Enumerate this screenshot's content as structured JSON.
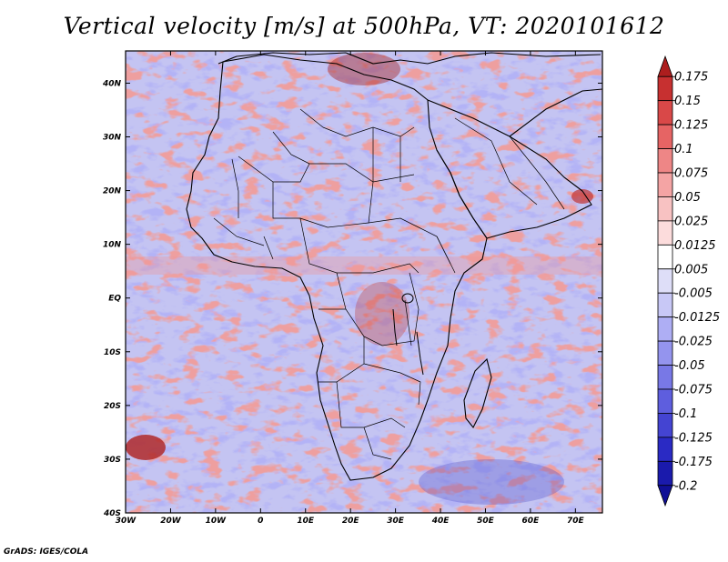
{
  "title": "Vertical velocity [m/s] at 500hPa, VT: 2020101612",
  "credit": "GrADS: IGES/COLA",
  "map": {
    "variable": "Vertical velocity",
    "units": "m/s",
    "level": "500hPa",
    "valid_time": "2020101612",
    "lon_range": [
      -30,
      76
    ],
    "lat_range": [
      -40,
      46
    ],
    "lat_ticks": [
      "40N",
      "30N",
      "20N",
      "10N",
      "EQ",
      "10S",
      "20S",
      "30S",
      "40S"
    ],
    "lon_ticks": [
      "30W",
      "20W",
      "10W",
      "0",
      "10E",
      "20E",
      "30E",
      "40E",
      "50E",
      "60E",
      "70E"
    ]
  },
  "colorbar": {
    "levels": [
      "0.175",
      "0.15",
      "0.125",
      "0.1",
      "0.075",
      "0.05",
      "0.025",
      "0.0125",
      "0.005",
      "-0.005",
      "-0.0125",
      "-0.025",
      "-0.05",
      "-0.075",
      "-0.1",
      "-0.125",
      "-0.175",
      "-0.2"
    ],
    "colors": [
      "#ad1e1e",
      "#c73030",
      "#d94848",
      "#e66464",
      "#ee8686",
      "#f4a4a4",
      "#f8c2c2",
      "#fcdcdc",
      "#ffffff",
      "#dedef8",
      "#c8c8f6",
      "#aeaef4",
      "#9494ee",
      "#7878e6",
      "#5e5ede",
      "#4444d2",
      "#2a2ac4",
      "#1a1aac",
      "#100f96"
    ]
  }
}
